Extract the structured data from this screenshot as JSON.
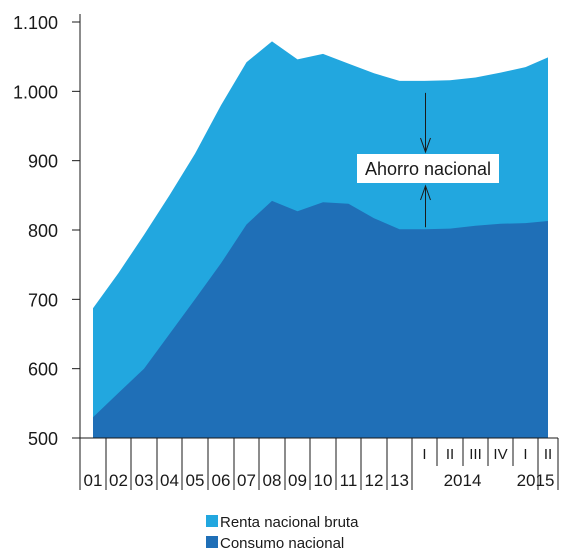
{
  "chart_data": {
    "type": "area",
    "title": "",
    "xlabel": "",
    "ylabel": "",
    "ylim": [
      500,
      1100
    ],
    "y_ticks": [
      "1.100",
      "1.000",
      "900",
      "800",
      "700",
      "600",
      "500"
    ],
    "y_tick_values": [
      1100,
      1000,
      900,
      800,
      700,
      600,
      500
    ],
    "grid": false,
    "legend_position": "bottom",
    "categories": [
      "01",
      "02",
      "03",
      "04",
      "05",
      "06",
      "07",
      "08",
      "09",
      "10",
      "11",
      "12",
      "13",
      "2014 I",
      "2014 II",
      "2014 III",
      "2014 IV",
      "2015 I",
      "2015 II"
    ],
    "x_tick_labels": [
      "01",
      "02",
      "03",
      "04",
      "05",
      "06",
      "07",
      "08",
      "09",
      "10",
      "11",
      "12",
      "13",
      "I",
      "II",
      "III",
      "IV",
      "I",
      "II"
    ],
    "year_group_labels": [
      "2014",
      "2015"
    ],
    "series": [
      {
        "name": "Renta nacional bruta",
        "color": "#22a7df",
        "values": [
          687,
          738,
          793,
          850,
          910,
          980,
          1042,
          1072,
          1046,
          1054,
          1040,
          1026,
          1015,
          1015,
          1016,
          1020,
          1027,
          1035,
          1049
        ]
      },
      {
        "name": "Consumo nacional",
        "color": "#1f6fb7",
        "values": [
          530,
          565,
          600,
          650,
          700,
          752,
          808,
          842,
          827,
          840,
          838,
          817,
          801,
          801,
          802,
          806,
          809,
          810,
          813
        ]
      }
    ],
    "annotation": {
      "text": "Ahorro nacional",
      "category_index": 13
    }
  }
}
